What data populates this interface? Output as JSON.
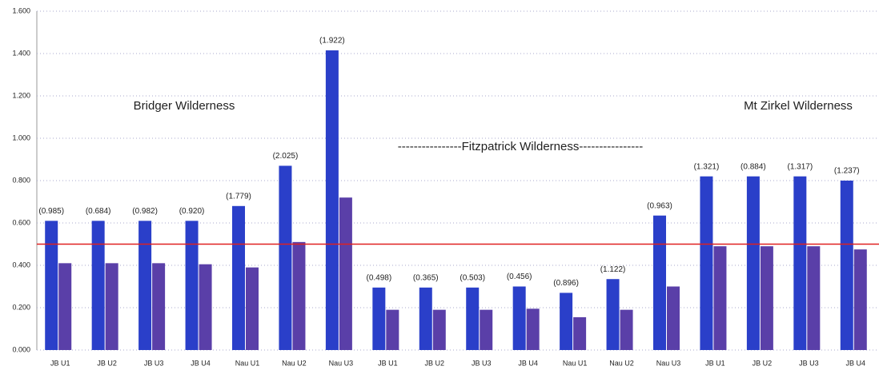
{
  "chart_data": {
    "type": "bar",
    "categories": [
      "JB U1",
      "JB U2",
      "JB U3",
      "JB U4",
      "Nau U1",
      "Nau U2",
      "Nau U3",
      "JB U1",
      "JB U2",
      "JB U3",
      "JB U4",
      "Nau U1",
      "Nau U2",
      "Nau U3",
      "JB U1",
      "JB U2",
      "JB U3",
      "JB U4"
    ],
    "series": [
      {
        "color": "#2a3fc9",
        "values": [
          0.61,
          0.61,
          0.61,
          0.61,
          0.68,
          0.87,
          1.415,
          0.295,
          0.295,
          0.295,
          0.3,
          0.27,
          0.335,
          0.635,
          0.82,
          0.82,
          0.82,
          0.8
        ]
      },
      {
        "color": "#5a3fa8",
        "values": [
          0.41,
          0.41,
          0.41,
          0.405,
          0.39,
          0.51,
          0.72,
          0.19,
          0.19,
          0.19,
          0.195,
          0.155,
          0.19,
          0.3,
          0.49,
          0.49,
          0.49,
          0.475
        ]
      }
    ],
    "annotations": [
      "(0.985)",
      "(0.684)",
      "(0.982)",
      "(0.920)",
      "(1.779)",
      "(2.025)",
      "(1.922)",
      "(0.498)",
      "(0.365)",
      "(0.503)",
      "(0.456)",
      "(0.896)",
      "(1.122)",
      "(0.963)",
      "(1.321)",
      "(0.884)",
      "(1.317)",
      "(1.237)"
    ],
    "groups": [
      "Bridger Wilderness",
      "----------------Fitzpatrick Wilderness----------------",
      "Mt Zirkel Wilderness"
    ],
    "reference_line": {
      "value": 0.5,
      "color": "#e02020"
    },
    "ylim": [
      0,
      1.6
    ],
    "yticks": [
      {
        "value": 0,
        "label": "0.000"
      },
      {
        "value": 0.2,
        "label": "0.200"
      },
      {
        "value": 0.4,
        "label": "0.400"
      },
      {
        "value": 0.6,
        "label": "0.600"
      },
      {
        "value": 0.8,
        "label": "0.800"
      },
      {
        "value": 1.0,
        "label": "1.000"
      },
      {
        "value": 1.2,
        "label": "1.200"
      },
      {
        "value": 1.4,
        "label": "1.400"
      },
      {
        "value": 1.6,
        "label": "1.600"
      }
    ],
    "grid": true
  }
}
